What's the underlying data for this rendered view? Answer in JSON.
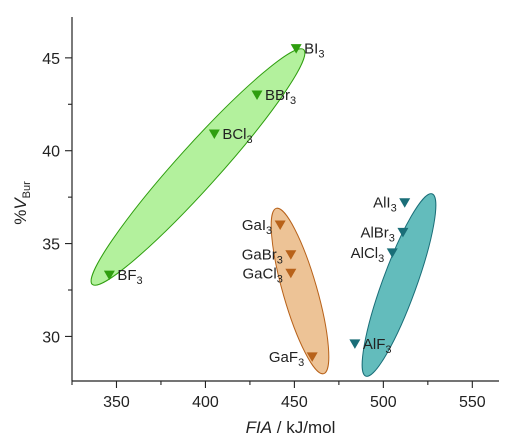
{
  "chart_data": {
    "type": "scatter",
    "title": "",
    "xlabel": {
      "italic": "FIA",
      "plain": " / kJ/mol"
    },
    "ylabel": {
      "prefix": "%",
      "italic": "V",
      "subscript": "Bur"
    },
    "xlim": [
      325,
      565
    ],
    "ylim": [
      27.6,
      47.2
    ],
    "xticks": [
      350,
      400,
      450,
      500,
      550
    ],
    "yticks": [
      30,
      35,
      40,
      45
    ],
    "grid": false,
    "legend": "none",
    "series": [
      {
        "group": "boron",
        "color": "#2f9e0f",
        "fill": "#a6ef8c",
        "points": [
          {
            "x": 346,
            "y": 33.3,
            "label": {
              "main": "BF",
              "sub": "3"
            }
          },
          {
            "x": 405,
            "y": 40.9,
            "label": {
              "main": "BCl",
              "sub": "3"
            }
          },
          {
            "x": 429,
            "y": 43.0,
            "label": {
              "main": "BBr",
              "sub": "3"
            }
          },
          {
            "x": 451,
            "y": 45.5,
            "label": {
              "main": "BI",
              "sub": "3"
            }
          }
        ]
      },
      {
        "group": "gallium",
        "color": "#b8621a",
        "fill": "#eab884",
        "points": [
          {
            "x": 442,
            "y": 36.0,
            "label": {
              "main": "GaI",
              "sub": "3"
            }
          },
          {
            "x": 448,
            "y": 34.4,
            "label": {
              "main": "GaBr",
              "sub": "3"
            }
          },
          {
            "x": 448,
            "y": 33.4,
            "label": {
              "main": "GaCl",
              "sub": "3"
            }
          },
          {
            "x": 460,
            "y": 28.9,
            "label": {
              "main": "GaF",
              "sub": "3"
            }
          }
        ]
      },
      {
        "group": "aluminium",
        "color": "#1a6e78",
        "fill": "#48b0b0",
        "points": [
          {
            "x": 484,
            "y": 29.6,
            "label": {
              "main": "AlF",
              "sub": "3"
            }
          },
          {
            "x": 505,
            "y": 34.5,
            "label": {
              "main": "AlCl",
              "sub": "3"
            }
          },
          {
            "x": 511,
            "y": 35.6,
            "label": {
              "main": "AlBr",
              "sub": "3"
            }
          },
          {
            "x": 512,
            "y": 37.2,
            "label": {
              "main": "AlI",
              "sub": "3"
            }
          }
        ]
      }
    ]
  }
}
